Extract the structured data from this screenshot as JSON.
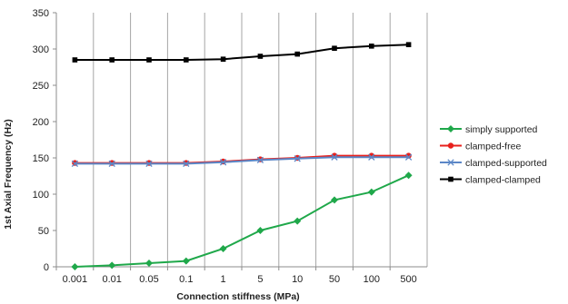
{
  "chart_data": {
    "type": "line",
    "title": "",
    "xlabel": "Connection stiffness (MPa)",
    "ylabel": "1st Axial Frequency (Hz)",
    "categories": [
      "0.001",
      "0.01",
      "0.05",
      "0.1",
      "1",
      "5",
      "10",
      "50",
      "100",
      "500"
    ],
    "ylim": [
      0,
      350
    ],
    "yticks": [
      0,
      50,
      100,
      150,
      200,
      250,
      300,
      350
    ],
    "grid": "vertical",
    "legend_position": "right",
    "series": [
      {
        "name": "simply supported",
        "color": "#1fa84a",
        "marker": "diamond",
        "values": [
          0,
          2,
          5,
          8,
          25,
          50,
          63,
          92,
          103,
          126
        ]
      },
      {
        "name": "clamped-free",
        "color": "#e8201c",
        "marker": "circle",
        "values": [
          143,
          143,
          143,
          143,
          145,
          148,
          150,
          153,
          153,
          153
        ]
      },
      {
        "name": "clamped-supported",
        "color": "#5b87c7",
        "marker": "x",
        "values": [
          142,
          142,
          142,
          142,
          144,
          147,
          149,
          151,
          151,
          151
        ]
      },
      {
        "name": "clamped-clamped",
        "color": "#000000",
        "marker": "square",
        "values": [
          285,
          285,
          285,
          285,
          286,
          290,
          293,
          301,
          304,
          306
        ]
      }
    ]
  }
}
